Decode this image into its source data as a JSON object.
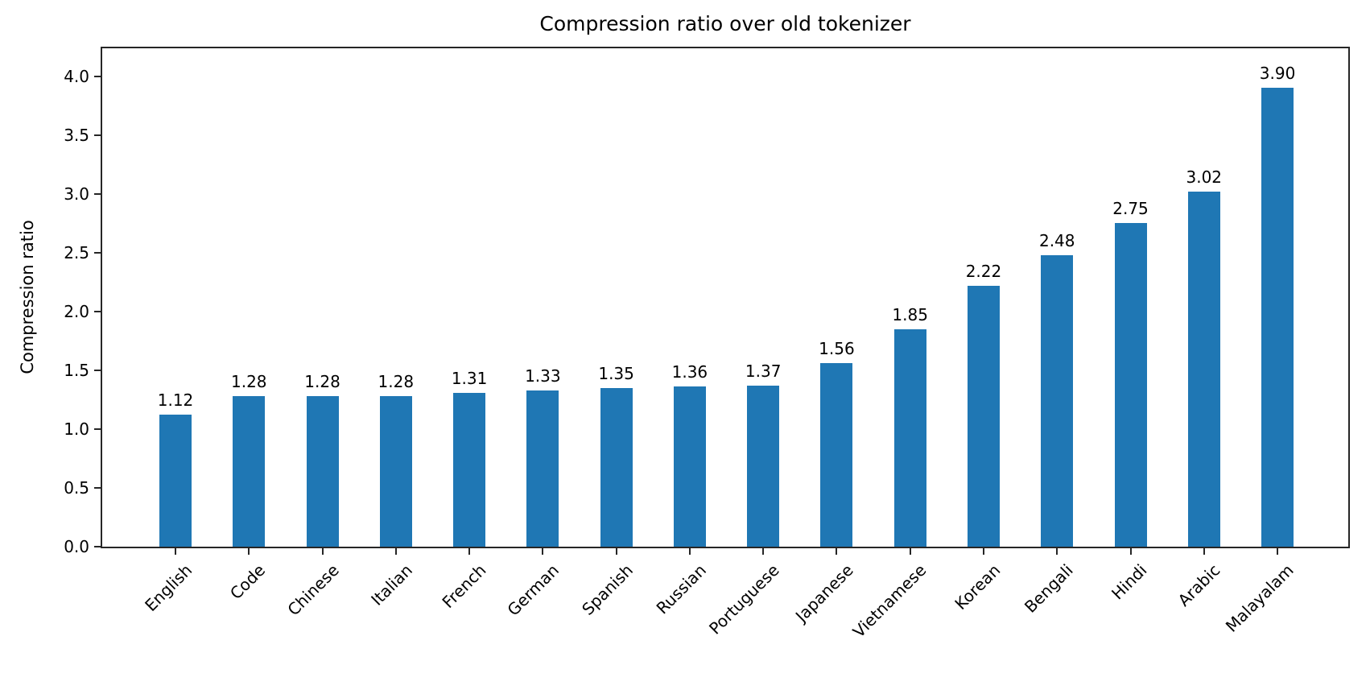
{
  "chart_data": {
    "type": "bar",
    "title": "Compression ratio over old tokenizer",
    "xlabel": "",
    "ylabel": "Compression ratio",
    "categories": [
      "English",
      "Code",
      "Chinese",
      "Italian",
      "French",
      "German",
      "Spanish",
      "Russian",
      "Portuguese",
      "Japanese",
      "Vietnamese",
      "Korean",
      "Bengali",
      "Hindi",
      "Arabic",
      "Malayalam"
    ],
    "values": [
      1.12,
      1.28,
      1.28,
      1.28,
      1.31,
      1.33,
      1.35,
      1.36,
      1.37,
      1.56,
      1.85,
      2.22,
      2.48,
      2.75,
      3.02,
      3.9
    ],
    "value_labels": [
      "1.12",
      "1.28",
      "1.28",
      "1.28",
      "1.31",
      "1.33",
      "1.35",
      "1.36",
      "1.37",
      "1.56",
      "1.85",
      "2.22",
      "2.48",
      "2.75",
      "3.02",
      "3.90"
    ],
    "y_tick_labels": [
      "0.0",
      "0.5",
      "1.0",
      "1.5",
      "2.0",
      "2.5",
      "3.0",
      "3.5",
      "4.0"
    ],
    "ylim": [
      0,
      4.25
    ],
    "grid": false,
    "legend_position": "none",
    "bar_color": "#1f77b4",
    "x_label_rotation_deg": 45
  }
}
